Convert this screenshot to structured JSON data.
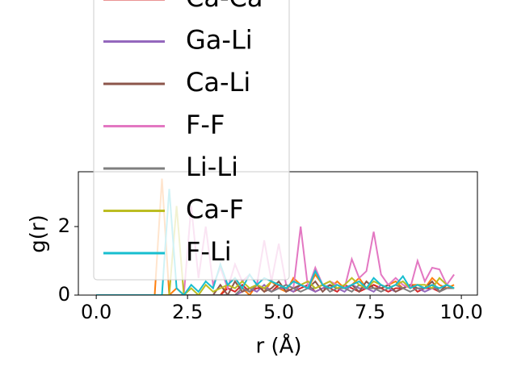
{
  "chart_data": {
    "type": "line",
    "xlabel": "r (Å)",
    "ylabel": "g(r)",
    "x": [
      0,
      0.2,
      0.4,
      0.6,
      0.8,
      1.0,
      1.2,
      1.4,
      1.6,
      1.8,
      2.0,
      2.2,
      2.4,
      2.6,
      2.8,
      3.0,
      3.2,
      3.4,
      3.6,
      3.8,
      4.0,
      4.2,
      4.4,
      4.6,
      4.8,
      5.0,
      5.2,
      5.4,
      5.6,
      5.8,
      6.0,
      6.2,
      6.4,
      6.6,
      6.8,
      7.0,
      7.2,
      7.4,
      7.6,
      7.8,
      8.0,
      8.2,
      8.4,
      8.6,
      8.8,
      9.0,
      9.2,
      9.4,
      9.6,
      9.8
    ],
    "series": [
      {
        "color": "#ff7f0e",
        "values": [
          0,
          0,
          0,
          0,
          0,
          0,
          0,
          0,
          0,
          3.4,
          0,
          0.2,
          0,
          0,
          0,
          0,
          0,
          0,
          0.3,
          0.5,
          0.2,
          0,
          0.3,
          0.1,
          0.4,
          0.2,
          0.1,
          0.5,
          0.3,
          0.2,
          0.6,
          0.3,
          0.2,
          0.4,
          0.2,
          0.3,
          0.5,
          0.2,
          0.3,
          0.2,
          0.3,
          0.4,
          0.2,
          0.3,
          0.3,
          0.2,
          0.5,
          0.3,
          0.2,
          0.3
        ]
      },
      {
        "name": "Ca-Ca",
        "color": "#d62728",
        "values": [
          0,
          0,
          0,
          0,
          0,
          0,
          0,
          0,
          0,
          0,
          0,
          0,
          0,
          0,
          0,
          0,
          0,
          0,
          0.2,
          0.1,
          0.3,
          0.1,
          0.2,
          0.2,
          0.1,
          0.3,
          0.2,
          0.1,
          0.2,
          0.3,
          0.1,
          0.2,
          0.2,
          0.1,
          0.3,
          0.2,
          0.1,
          0.2,
          0.3,
          0.2,
          0.1,
          0.2,
          0.2,
          0.3,
          0.1,
          0.2,
          0.2,
          0.1,
          0.2,
          0.2
        ]
      },
      {
        "name": "Ga-Li",
        "color": "#9467bd",
        "values": [
          0,
          0,
          0,
          0,
          0,
          0,
          0,
          0,
          0,
          0,
          0,
          0,
          0,
          0,
          0,
          0,
          0,
          0,
          0,
          0,
          0.1,
          0.2,
          0.1,
          0.3,
          0.1,
          0.2,
          0.2,
          0.1,
          0.3,
          0.2,
          0.1,
          0.2,
          0.3,
          0.2,
          0.1,
          0.3,
          0.2,
          0.2,
          0.1,
          0.3,
          0.2,
          0.1,
          0.2,
          0.3,
          0.2,
          0.1,
          0.2,
          0.2,
          0.3,
          0.2
        ]
      },
      {
        "name": "Ca-Li",
        "color": "#8c564b",
        "values": [
          0,
          0,
          0,
          0,
          0,
          0,
          0,
          0,
          0,
          0,
          0,
          0,
          0,
          0,
          0,
          0,
          0,
          0.3,
          0,
          0.4,
          0.1,
          0.2,
          0.3,
          0.1,
          0.2,
          0.4,
          0.1,
          0.2,
          0.3,
          0.2,
          0.4,
          0.1,
          0.3,
          0.2,
          0.2,
          0.3,
          0.1,
          0.4,
          0.2,
          0.2,
          0.3,
          0.1,
          0.2,
          0.3,
          0.2,
          0.2,
          0.4,
          0.1,
          0.3,
          0.2
        ]
      },
      {
        "name": "F-F",
        "color": "#e377c2",
        "values": [
          0,
          0,
          0,
          0,
          0,
          0,
          0,
          0,
          0,
          0,
          0,
          0,
          0,
          2.6,
          0.5,
          2.0,
          0.3,
          0.8,
          0.2,
          0.9,
          0.4,
          0.6,
          0.3,
          1.6,
          0.4,
          1.5,
          0.3,
          0.2,
          2.0,
          0.2,
          0.8,
          0.3,
          0.4,
          0.3,
          0.2,
          1.05,
          0.5,
          0.7,
          1.85,
          0.6,
          0.3,
          0.5,
          0.3,
          0.2,
          1.0,
          0.4,
          0.8,
          0.75,
          0.3,
          0.6
        ]
      },
      {
        "name": "Li-Li",
        "color": "#7f7f7f",
        "values": [
          0,
          0,
          0,
          0,
          0,
          0,
          0,
          0,
          0,
          0,
          0,
          0,
          0,
          0,
          0,
          0,
          0,
          0,
          0,
          0,
          0.2,
          0.1,
          0.3,
          0.2,
          0.1,
          0.2,
          0.3,
          0.2,
          0.1,
          0.2,
          0.2,
          0.3,
          0.1,
          0.2,
          0.2,
          0.1,
          0.3,
          0.2,
          0.2,
          0.1,
          0.2,
          0.3,
          0.2,
          0.1,
          0.2,
          0.2,
          0.3,
          0.1,
          0.2,
          0.2
        ]
      },
      {
        "name": "Ca-F",
        "color": "#bcbd22",
        "values": [
          0,
          0,
          0,
          0,
          0,
          0,
          0,
          0,
          0,
          0,
          0,
          2.6,
          0,
          0.2,
          0,
          0.3,
          0.1,
          0.2,
          0.3,
          0.2,
          0.4,
          0.2,
          0.3,
          0.2,
          0.4,
          0.3,
          0.2,
          0.4,
          0.3,
          0.4,
          0.2,
          0.3,
          0.4,
          0.2,
          0.3,
          0.5,
          0.3,
          0.2,
          0.4,
          0.3,
          0.2,
          0.3,
          0.4,
          0.2,
          0.3,
          0.3,
          0.2,
          0.5,
          0.3,
          0.2
        ]
      },
      {
        "name": "F-Li",
        "color": "#17becf",
        "values": [
          0,
          0,
          0,
          0,
          0,
          0,
          0,
          0,
          0,
          0,
          3.1,
          0.2,
          0,
          0.3,
          0.1,
          0.4,
          0.2,
          0.9,
          0.3,
          0.5,
          0.2,
          0.6,
          0.3,
          0.5,
          0.4,
          0.3,
          0.2,
          0.4,
          0.3,
          0.2,
          0.7,
          0.3,
          0.2,
          0.3,
          0.2,
          0.3,
          0.4,
          0.2,
          0.5,
          0.3,
          0.2,
          0.3,
          0.55,
          0.2,
          0.3,
          0.2,
          0.3,
          0.2,
          0.3,
          0.2
        ]
      }
    ],
    "xlim": [
      -0.49,
      10.44
    ],
    "ylim": [
      0,
      3.6
    ],
    "xticks": [
      {
        "value": 0,
        "label": "0.0"
      },
      {
        "value": 2.5,
        "label": "2.5"
      },
      {
        "value": 5,
        "label": "5.0"
      },
      {
        "value": 7.5,
        "label": "7.5"
      },
      {
        "value": 10,
        "label": "10.0"
      }
    ],
    "yticks": [
      0,
      2
    ],
    "legend": "upper left"
  }
}
